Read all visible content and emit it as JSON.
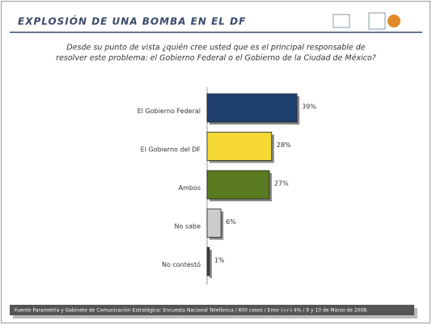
{
  "chart_data": {
    "type": "bar",
    "title": "EXPLOSIÓN DE UNA BOMBA EN EL DF",
    "subtitle": [
      "Desde su punto de vista ¿quién cree usted que es el principal responsable de",
      "resolver este problema: el Gobierno Federal o el Gobierno de la Ciudad de México?"
    ],
    "categories": [
      "El Gobierno Federal",
      "El Gobierno del DF",
      "Ambos",
      "No sabe",
      "No contestó"
    ],
    "values": [
      39,
      28,
      27,
      6,
      1
    ],
    "value_labels": [
      "39%",
      "28%",
      "27%",
      "6%",
      "1%"
    ],
    "colors": [
      "#1f3f6e",
      "#f7d935",
      "#5a7a20",
      "#cccccc",
      "#444444"
    ],
    "footer": "Fuente Parametría y Gabinete de Comunicación Estratégica: Encuesta Nacional Telefónica / 600 casos / Error (+/-) 4% / 9 y 10 de Marzo de 2008."
  }
}
